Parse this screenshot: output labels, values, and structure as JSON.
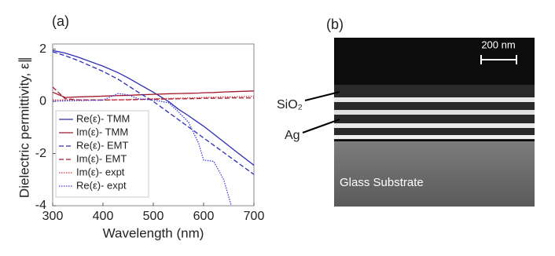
{
  "chart_data": {
    "type": "line",
    "panel_label": "(a)",
    "x_label": "Wavelength (nm)",
    "y_label": "Dielectric permittivity, ε∥",
    "x": [
      300,
      325,
      350,
      400,
      430,
      450,
      470,
      500,
      530,
      550,
      570,
      590,
      600,
      620,
      640,
      655,
      700
    ],
    "series": [
      {
        "name": "Re(ε)- TMM",
        "color": "#2d2db8",
        "dash": "solid",
        "values": [
          1.95,
          1.85,
          1.7,
          1.35,
          1.1,
          0.9,
          0.68,
          0.35,
          0.0,
          -0.3,
          -0.55,
          -0.82,
          -0.95,
          -1.25,
          -1.55,
          -1.78,
          -2.45
        ]
      },
      {
        "name": "Im(ε)- TMM",
        "color": "#a3192e",
        "dash": "solid",
        "values": [
          0.35,
          0.15,
          0.17,
          0.2,
          0.22,
          0.23,
          0.25,
          0.27,
          0.29,
          0.3,
          0.31,
          0.32,
          0.33,
          0.34,
          0.36,
          0.37,
          0.4
        ]
      },
      {
        "name": "Re(ε)- EMT",
        "color": "#2d2db8",
        "dash": "dashed",
        "values": [
          1.9,
          1.75,
          1.57,
          1.15,
          0.85,
          0.6,
          0.35,
          0.0,
          -0.42,
          -0.7,
          -0.98,
          -1.26,
          -1.4,
          -1.68,
          -1.96,
          -2.17,
          -2.8
        ]
      },
      {
        "name": "Im(ε)- EMT",
        "color": "#a3192e",
        "dash": "dashed",
        "values": [
          0.55,
          0.1,
          0.06,
          0.05,
          0.06,
          0.06,
          0.07,
          0.08,
          0.09,
          0.1,
          0.1,
          0.11,
          0.12,
          0.12,
          0.12,
          0.13,
          0.13
        ]
      },
      {
        "name": "Im(ε)- expt",
        "color": "#d0303a",
        "dash": "dotted",
        "values": [
          0.05,
          0.05,
          0.05,
          0.05,
          0.06,
          0.07,
          0.08,
          0.1,
          0.11,
          0.12,
          0.13,
          0.14,
          0.15,
          0.16,
          0.17,
          0.17,
          0.2
        ]
      },
      {
        "name": "Re(ε)- expt",
        "color": "#3a3ae0",
        "dash": "dotted",
        "values": [
          0.0,
          0.02,
          0.03,
          0.05,
          0.3,
          0.25,
          0.1,
          0.05,
          -0.05,
          -0.4,
          -0.8,
          -1.6,
          -2.25,
          -2.3,
          -3.0,
          -4.0,
          null
        ]
      }
    ],
    "xlim": [
      300,
      700
    ],
    "ylim": [
      -4,
      2.2
    ],
    "xticks": [
      300,
      400,
      500,
      600,
      700
    ],
    "yticks": [
      -4,
      -2,
      0,
      2
    ]
  },
  "image_panel": {
    "panel_label": "(b)",
    "scale_bar": "200 nm",
    "layer_top": "SiO₂",
    "layer_metal": "Ag",
    "substrate": "Glass Substrate"
  }
}
